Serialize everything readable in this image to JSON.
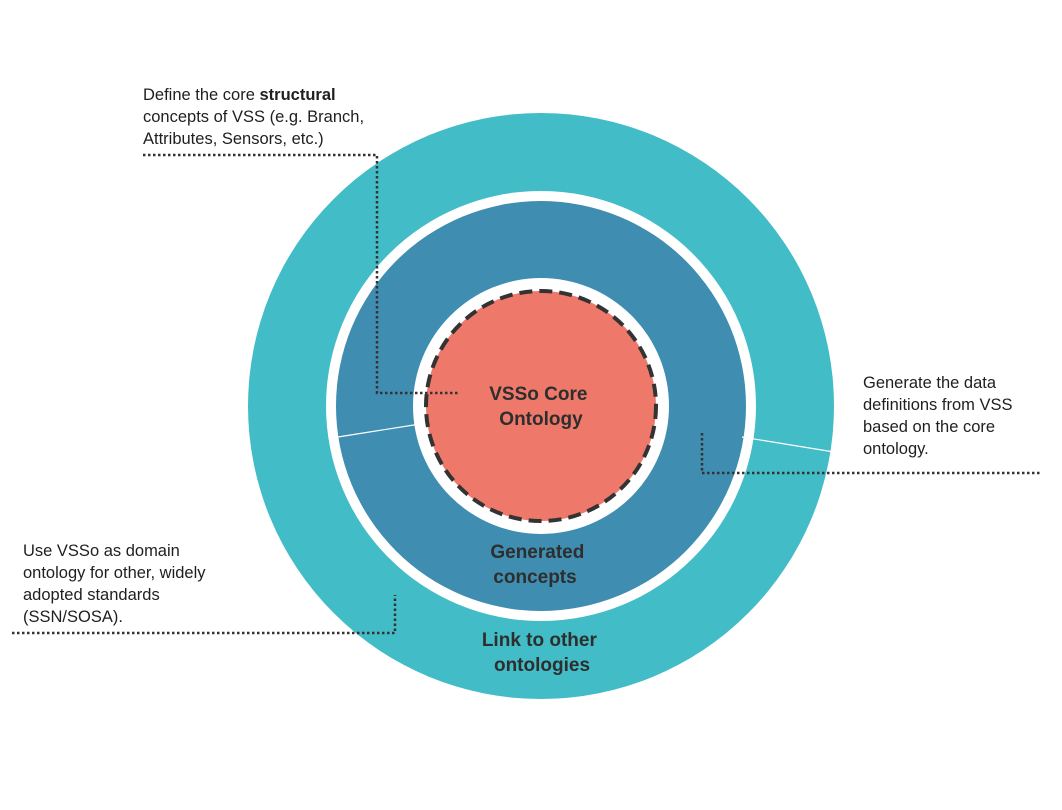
{
  "diagram": {
    "rings": {
      "outer": {
        "label_line1": "Link to other",
        "label_line2": "ontologies",
        "color": "#42BCC6"
      },
      "middle": {
        "label_line1": "Generated",
        "label_line2": "concepts",
        "color": "#3F8DB0"
      },
      "core": {
        "label_line1": "VSSo Core",
        "label_line2": "Ontology",
        "color": "#EE786A"
      }
    },
    "annotations": {
      "core": {
        "line1_prefix": "Define the core ",
        "line1_bold": "structural",
        "line2": "concepts of VSS (e.g. Branch,",
        "line3": "Attributes, Sensors, etc.)"
      },
      "generated": {
        "line1": "Generate the data",
        "line2": "definitions from VSS",
        "line3": "based on the core",
        "line4": "ontology."
      },
      "link": {
        "line1": "Use VSSo as domain",
        "line2": "ontology for other, widely",
        "line3": "adopted standards",
        "line4": "(SSN/SOSA)."
      }
    }
  }
}
